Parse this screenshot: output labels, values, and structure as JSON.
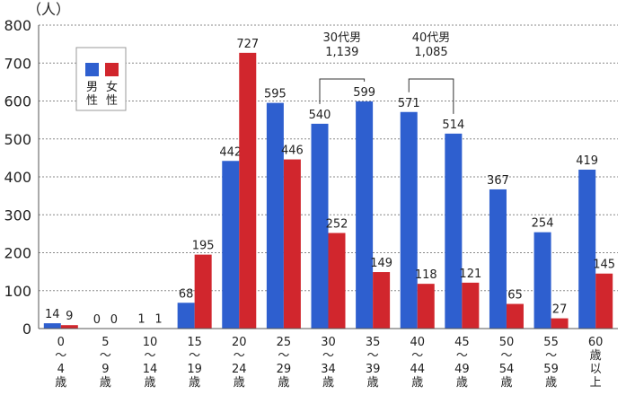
{
  "chart_data": {
    "type": "bar",
    "ylabel": "（人）",
    "ylim": [
      0,
      800
    ],
    "yticks": [
      0,
      100,
      200,
      300,
      400,
      500,
      600,
      700,
      800
    ],
    "categories": [
      [
        "0",
        "～",
        "4",
        "歳"
      ],
      [
        "5",
        "～",
        "9",
        "歳"
      ],
      [
        "10",
        "～",
        "14",
        "歳"
      ],
      [
        "15",
        "～",
        "19",
        "歳"
      ],
      [
        "20",
        "～",
        "24",
        "歳"
      ],
      [
        "25",
        "～",
        "29",
        "歳"
      ],
      [
        "30",
        "～",
        "34",
        "歳"
      ],
      [
        "35",
        "～",
        "39",
        "歳"
      ],
      [
        "40",
        "～",
        "44",
        "歳"
      ],
      [
        "45",
        "～",
        "49",
        "歳"
      ],
      [
        "50",
        "～",
        "54",
        "歳"
      ],
      [
        "55",
        "～",
        "59",
        "歳"
      ],
      [
        "60",
        "歳",
        "以",
        "上"
      ]
    ],
    "series": [
      {
        "name": "男性",
        "color": "#2e5fcf",
        "values": [
          14,
          0,
          1,
          68,
          442,
          595,
          540,
          599,
          571,
          514,
          367,
          254,
          419
        ]
      },
      {
        "name": "女性",
        "color": "#d1262d",
        "values": [
          9,
          0,
          1,
          195,
          727,
          446,
          252,
          149,
          118,
          121,
          65,
          27,
          145
        ]
      }
    ],
    "legend": {
      "position": "top-left"
    },
    "grid": true,
    "annotations": [
      {
        "label": "30代男",
        "value": "1,139",
        "categories": [
          6,
          7
        ]
      },
      {
        "label": "40代男",
        "value": "1,085",
        "categories": [
          8,
          9
        ]
      }
    ]
  }
}
